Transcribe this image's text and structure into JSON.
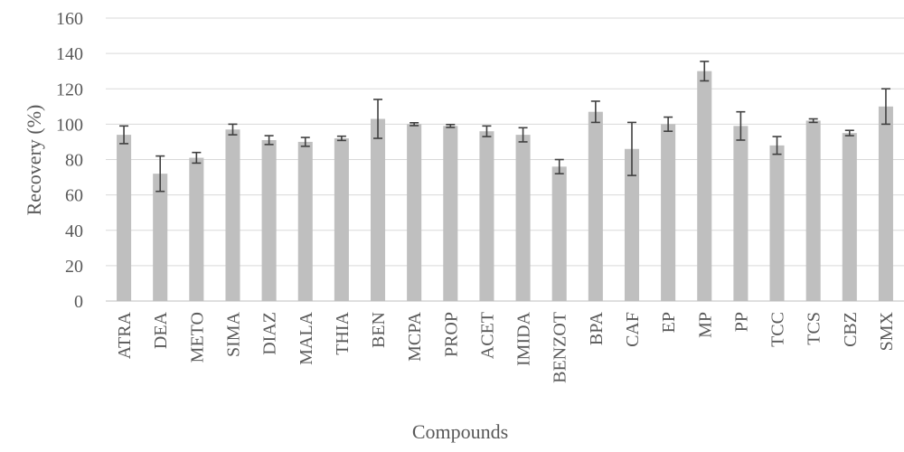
{
  "chart_data": {
    "type": "bar",
    "title": "",
    "xlabel": "Compounds",
    "ylabel": "Recovery (%)",
    "ylim": [
      0,
      160
    ],
    "yticks": [
      0,
      20,
      40,
      60,
      80,
      100,
      120,
      140,
      160
    ],
    "grid": true,
    "legend": "none",
    "bar_color": "#bfbfbf",
    "error_color": "#404040",
    "categories": [
      "ATRA",
      "DEA",
      "METO",
      "SIMA",
      "DIAZ",
      "MALA",
      "THIA",
      "BEN",
      "MCPA",
      "PROP",
      "ACET",
      "IMIDA",
      "BENZOT",
      "BPA",
      "CAF",
      "EP",
      "MP",
      "PP",
      "TCC",
      "TCS",
      "CBZ",
      "SMX"
    ],
    "values": [
      94,
      72,
      81,
      97,
      91,
      90,
      92,
      103,
      100,
      99,
      96,
      94,
      76,
      107,
      86,
      100,
      130,
      99,
      88,
      102,
      95,
      110
    ],
    "errors": [
      5,
      10,
      3,
      3,
      2.5,
      2.5,
      1.2,
      11,
      0.8,
      0.8,
      3,
      4,
      4,
      6,
      15,
      4,
      5.5,
      8,
      5,
      1,
      1.5,
      10
    ]
  }
}
